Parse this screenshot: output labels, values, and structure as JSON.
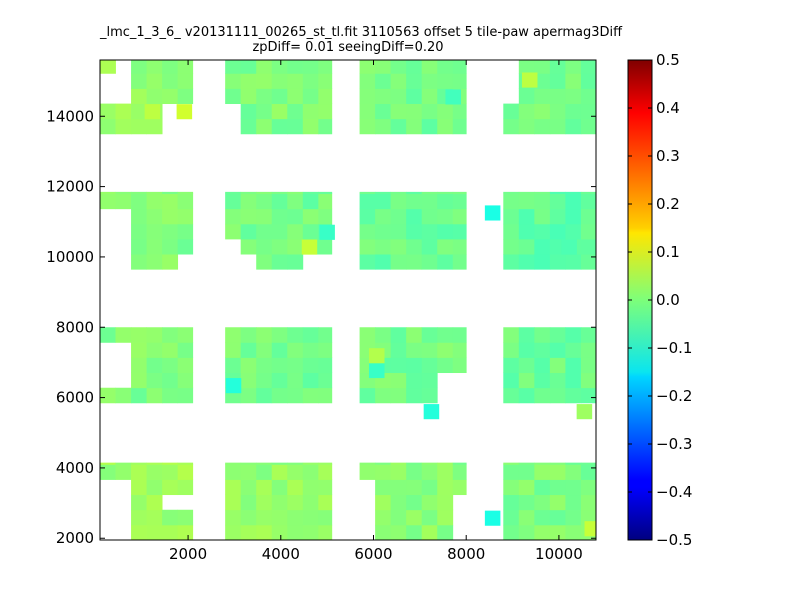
{
  "chart_data": {
    "type": "heatmap",
    "title_line1": "_lmc_1_3_6_ v20131111_00265_st_tl.fit 3110563 offset 5 tile-paw apermag3Diff",
    "title_line2": "zpDiff= 0.01 seeingDiff=0.20",
    "xlabel": "",
    "ylabel": "",
    "xlim": [
      100,
      10800
    ],
    "ylim": [
      1950,
      15600
    ],
    "x_ticks": [
      2000,
      4000,
      6000,
      8000,
      10000
    ],
    "y_ticks": [
      2000,
      4000,
      6000,
      8000,
      10000,
      12000,
      14000
    ],
    "colorbar": {
      "colormap": "jet",
      "vmin": -0.5,
      "vmax": 0.5,
      "ticks": [
        "0.5",
        "0.4",
        "0.3",
        "0.2",
        "0.1",
        "0.0",
        "−0.1",
        "−0.2",
        "−0.3",
        "−0.4",
        "−0.5"
      ]
    },
    "cell_size": [
      335,
      430
    ],
    "regions": [
      {
        "x": [
          100,
          2100
        ],
        "y": [
          1950,
          4150
        ],
        "value": 0.03
      },
      {
        "x": [
          2800,
          5100
        ],
        "y": [
          1950,
          4150
        ],
        "value": 0.02
      },
      {
        "x": [
          5700,
          8000
        ],
        "y": [
          1950,
          4150
        ],
        "value": 0.01
      },
      {
        "x": [
          8800,
          10800
        ],
        "y": [
          1950,
          4150
        ],
        "value": 0.0
      },
      {
        "x": [
          100,
          2100
        ],
        "y": [
          5850,
          8000
        ],
        "value": 0.0
      },
      {
        "x": [
          2800,
          5100
        ],
        "y": [
          5850,
          8000
        ],
        "value": -0.01
      },
      {
        "x": [
          5700,
          8000
        ],
        "y": [
          5850,
          8000
        ],
        "value": -0.01
      },
      {
        "x": [
          8800,
          10800
        ],
        "y": [
          5850,
          8000
        ],
        "value": -0.02
      },
      {
        "x": [
          100,
          2100
        ],
        "y": [
          9650,
          11850
        ],
        "value": 0.0
      },
      {
        "x": [
          2800,
          5100
        ],
        "y": [
          9650,
          11850
        ],
        "value": -0.01
      },
      {
        "x": [
          5700,
          8000
        ],
        "y": [
          9650,
          11850
        ],
        "value": -0.02
      },
      {
        "x": [
          8800,
          10800
        ],
        "y": [
          9650,
          11850
        ],
        "value": -0.03
      },
      {
        "x": [
          100,
          2100
        ],
        "y": [
          13500,
          15600
        ],
        "value": 0.02
      },
      {
        "x": [
          2800,
          5100
        ],
        "y": [
          13500,
          15600
        ],
        "value": 0.0
      },
      {
        "x": [
          5700,
          8000
        ],
        "y": [
          13500,
          15600
        ],
        "value": -0.01
      },
      {
        "x": [
          8800,
          10800
        ],
        "y": [
          13500,
          15600
        ],
        "value": -0.01
      }
    ],
    "holes": [
      {
        "x": [
          100,
          750
        ],
        "y": [
          1950,
          3700
        ]
      },
      {
        "x": [
          1400,
          2100
        ],
        "y": [
          2750,
          3200
        ]
      },
      {
        "x": [
          5700,
          6050
        ],
        "y": [
          1950,
          3700
        ]
      },
      {
        "x": [
          5700,
          6050
        ],
        "y": [
          3700,
          3200
        ]
      },
      {
        "x": [
          7700,
          8000
        ],
        "y": [
          1950,
          3300
        ]
      },
      {
        "x": [
          8500,
          8800
        ],
        "y": [
          2400,
          2750
        ]
      },
      {
        "x": [
          100,
          750
        ],
        "y": [
          6200,
          7700
        ]
      },
      {
        "x": [
          7400,
          8000
        ],
        "y": [
          5850,
          6650
        ]
      },
      {
        "x": [
          8800,
          10300
        ],
        "y": [
          5350,
          5850
        ]
      },
      {
        "x": [
          10600,
          10800
        ],
        "y": [
          5350,
          5850
        ]
      },
      {
        "x": [
          100,
          750
        ],
        "y": [
          9650,
          11450
        ]
      },
      {
        "x": [
          1700,
          2100
        ],
        "y": [
          9650,
          10000
        ]
      },
      {
        "x": [
          2800,
          3100
        ],
        "y": [
          9650,
          10400
        ]
      },
      {
        "x": [
          3100,
          3400
        ],
        "y": [
          9650,
          10050
        ]
      },
      {
        "x": [
          4400,
          5100
        ],
        "y": [
          9650,
          10000
        ]
      },
      {
        "x": [
          8000,
          8400
        ],
        "y": [
          9650,
          11850
        ]
      },
      {
        "x": [
          100,
          750
        ],
        "y": [
          14350,
          15300
        ]
      },
      {
        "x": [
          300,
          750
        ],
        "y": [
          15300,
          15600
        ]
      },
      {
        "x": [
          1400,
          2100
        ],
        "y": [
          13500,
          14350
        ]
      },
      {
        "x": [
          2800,
          3100
        ],
        "y": [
          13500,
          14350
        ]
      },
      {
        "x": [
          8800,
          9200
        ],
        "y": [
          14550,
          15600
        ]
      },
      {
        "x": [
          8000,
          8400
        ],
        "y": [
          13500,
          15600
        ]
      }
    ],
    "outliers": [
      {
        "x": 7250,
        "y": 5600,
        "value": -0.09
      },
      {
        "x": 8570,
        "y": 11250,
        "value": -0.1
      },
      {
        "x": 8570,
        "y": 2570,
        "value": -0.1
      },
      {
        "x": 2980,
        "y": 6340,
        "value": -0.09
      },
      {
        "x": 6070,
        "y": 6770,
        "value": -0.07
      },
      {
        "x": 6070,
        "y": 7190,
        "value": 0.05
      },
      {
        "x": 4620,
        "y": 10280,
        "value": 0.07
      },
      {
        "x": 5000,
        "y": 10700,
        "value": -0.07
      },
      {
        "x": 9370,
        "y": 15030,
        "value": 0.06
      },
      {
        "x": 10550,
        "y": 5600,
        "value": 0.03
      },
      {
        "x": 10720,
        "y": 2270,
        "value": 0.07
      },
      {
        "x": 1230,
        "y": 14130,
        "value": 0.06
      },
      {
        "x": 1920,
        "y": 14130,
        "value": 0.08
      },
      {
        "x": 7720,
        "y": 14550,
        "value": -0.06
      },
      {
        "x": 10220,
        "y": 10280,
        "value": -0.05
      }
    ]
  }
}
